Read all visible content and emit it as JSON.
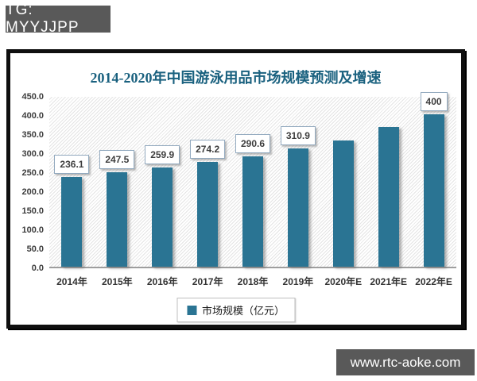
{
  "badge": {
    "text": "TG: MYYJJPP"
  },
  "watermark": {
    "text": "www.rtc-aoke.com"
  },
  "legend": {
    "label": "市场规模（亿元）"
  },
  "colors": {
    "bar": "#2a7493",
    "title": "#1a617f",
    "badge_bg": "#595959",
    "axis_text": "#3d3d3d"
  },
  "chart_data": {
    "type": "bar",
    "title": "2014-2020年中国游泳用品市场规模预测及增速",
    "xlabel": "",
    "ylabel": "市场规模（亿元）",
    "categories": [
      "2014年",
      "2015年",
      "2016年",
      "2017年",
      "2018年",
      "2019年",
      "2020年E",
      "2021年E",
      "2022年E"
    ],
    "values": [
      236.1,
      247.5,
      259.9,
      274.2,
      290.6,
      310.9,
      331,
      367,
      400
    ],
    "bar_labels": [
      "236.1",
      "247.5",
      "259.9",
      "274.2",
      "290.6",
      "310.9",
      "",
      "",
      "400"
    ],
    "ytick_labels": [
      "450.0",
      "400.0",
      "350.0",
      "300.0",
      "250.0",
      "200.0",
      "150.0",
      "100.0",
      "50.0",
      "0.0"
    ],
    "ylim": [
      0,
      450
    ],
    "grid": false,
    "legend_entries": [
      "市场规模（亿元）"
    ],
    "legend_position": "bottom"
  }
}
